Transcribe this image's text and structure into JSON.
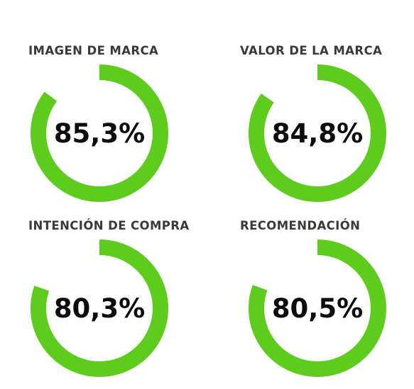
{
  "chart_data": [
    {
      "type": "pie",
      "title": "IMAGEN DE MARCA",
      "value": 85.3,
      "max": 100,
      "label": "85,3%",
      "color": "#5ecc1d"
    },
    {
      "type": "pie",
      "title": "VALOR DE LA MARCA",
      "value": 84.8,
      "max": 100,
      "label": "84,8%",
      "color": "#5ecc1d"
    },
    {
      "type": "pie",
      "title": "INTENCIÓN DE COMPRA",
      "value": 80.3,
      "max": 100,
      "label": "80,3%",
      "color": "#5ecc1d"
    },
    {
      "type": "pie",
      "title": "RECOMENDACIÓN",
      "value": 80.5,
      "max": 100,
      "label": "80,5%",
      "color": "#5ecc1d"
    }
  ],
  "colors": {
    "ring": "#5ecc1d",
    "title_text": "#3a3a3a",
    "value_text": "#0d0d0d"
  }
}
